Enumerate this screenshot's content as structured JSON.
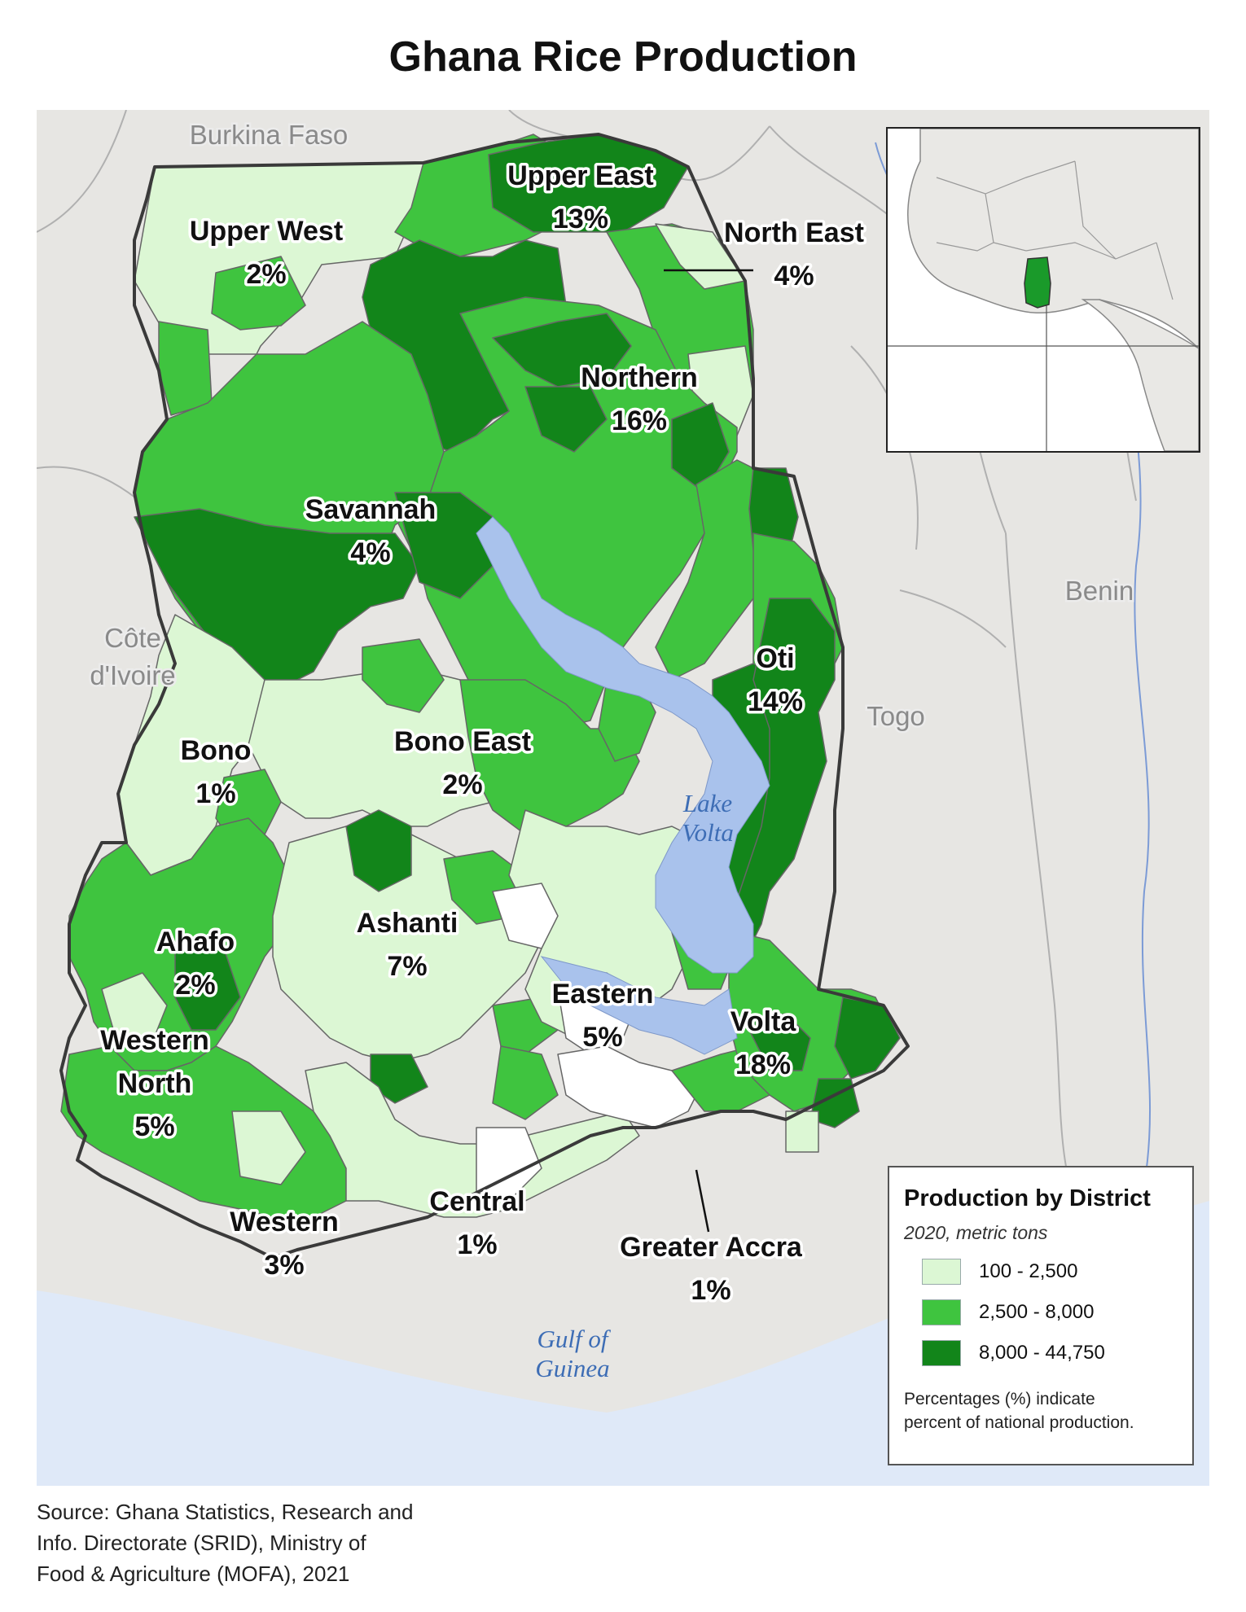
{
  "title": "Ghana Rice Production",
  "countries": {
    "burkina": "Burkina Faso",
    "cote1": "Côte",
    "cote2": "d'Ivoire",
    "togo": "Togo",
    "benin": "Benin"
  },
  "water": {
    "lake1": "Lake",
    "lake2": "Volta",
    "gulf1": "Gulf of",
    "gulf2": "Guinea"
  },
  "regions": [
    {
      "name": "Upper East",
      "pct": "13%"
    },
    {
      "name": "Upper West",
      "pct": "2%"
    },
    {
      "name": "North East",
      "pct": "4%"
    },
    {
      "name": "Northern",
      "pct": "16%"
    },
    {
      "name": "Savannah",
      "pct": "4%"
    },
    {
      "name": "Oti",
      "pct": "14%"
    },
    {
      "name": "Bono",
      "pct": "1%"
    },
    {
      "name": "Bono East",
      "pct": "2%"
    },
    {
      "name": "Ashanti",
      "pct": "7%"
    },
    {
      "name": "Ahafo",
      "pct": "2%"
    },
    {
      "name": "Eastern",
      "pct": "5%"
    },
    {
      "name": "Volta",
      "pct": "18%"
    },
    {
      "name": "Western North",
      "name_line1": "Western",
      "name_line2": "North",
      "pct": "5%"
    },
    {
      "name": "Western",
      "pct": "3%"
    },
    {
      "name": "Central",
      "pct": "1%"
    },
    {
      "name": "Greater Accra",
      "pct": "1%"
    }
  ],
  "legend": {
    "title": "Production by District",
    "subtitle": "2020, metric tons",
    "classes": [
      {
        "label": "100 - 2,500",
        "color": "#dcf7d4"
      },
      {
        "label": "2,500 - 8,000",
        "color": "#3fc43f"
      },
      {
        "label": "8,000 - 44,750",
        "color": "#12851a"
      }
    ],
    "note_line1": "Percentages (%) indicate",
    "note_line2": "percent of national production."
  },
  "source": {
    "line1": "Source: Ghana Statistics, Research and",
    "line2": "Info. Directorate (SRID), Ministry of",
    "line3": "Food & Agriculture (MOFA), 2021"
  },
  "colors": {
    "land": "#e7e6e3",
    "sea": "#dfe9f8",
    "lake": "#a9c2ec",
    "light": "#dcf7d4",
    "medium": "#3fc43f",
    "dark": "#12851a"
  }
}
